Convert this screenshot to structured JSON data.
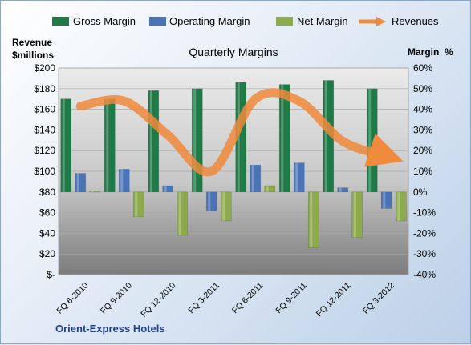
{
  "colors": {
    "gross": "#1e7a46",
    "operating": "#4a73b8",
    "net": "#8cab4c",
    "revenue": "#f08a3c"
  },
  "legend": [
    "Gross Margin",
    "Operating Margin",
    "Net Margin",
    "Revenues"
  ],
  "company": "Orient-Express Hotels",
  "chart_data": {
    "type": "bar",
    "title": "Quarterly Margins",
    "ylabel_left": [
      "Revenue",
      "$millions"
    ],
    "ylabel_right": "Margin  %",
    "categories": [
      "FQ 6-2010",
      "FQ 9-2010",
      "FQ 12-2010",
      "FQ 3-2011",
      "FQ 6-2011",
      "FQ 9-2011",
      "FQ 12-2011",
      "FQ 3-2012"
    ],
    "left_axis": {
      "min": 0,
      "max": 200,
      "step": 20,
      "labels": [
        "$-",
        "$20",
        "$40",
        "$60",
        "$80",
        "$100",
        "$120",
        "$140",
        "$160",
        "$180",
        "$200"
      ]
    },
    "right_axis": {
      "min": -40,
      "max": 60,
      "step": 10,
      "labels": [
        "-40%",
        "-30%",
        "-20%",
        "-10%",
        "0%",
        "10%",
        "20%",
        "30%",
        "40%",
        "50%",
        "60%"
      ]
    },
    "grid": true,
    "legend_position": "top",
    "series": [
      {
        "name": "Gross Margin",
        "axis": "right",
        "type": "bar",
        "values": [
          45,
          45,
          49,
          50,
          53,
          52,
          54,
          50
        ]
      },
      {
        "name": "Operating Margin",
        "axis": "right",
        "type": "bar",
        "values": [
          9,
          11,
          3,
          -9,
          13,
          14,
          2,
          -8
        ]
      },
      {
        "name": "Net Margin",
        "axis": "right",
        "type": "bar",
        "values": [
          0.5,
          -12,
          -21,
          -14,
          3,
          -27,
          -22,
          -14
        ]
      },
      {
        "name": "Revenues",
        "axis": "left",
        "type": "line",
        "values": [
          163,
          168,
          135,
          100,
          170,
          168,
          129,
          115
        ]
      }
    ]
  }
}
